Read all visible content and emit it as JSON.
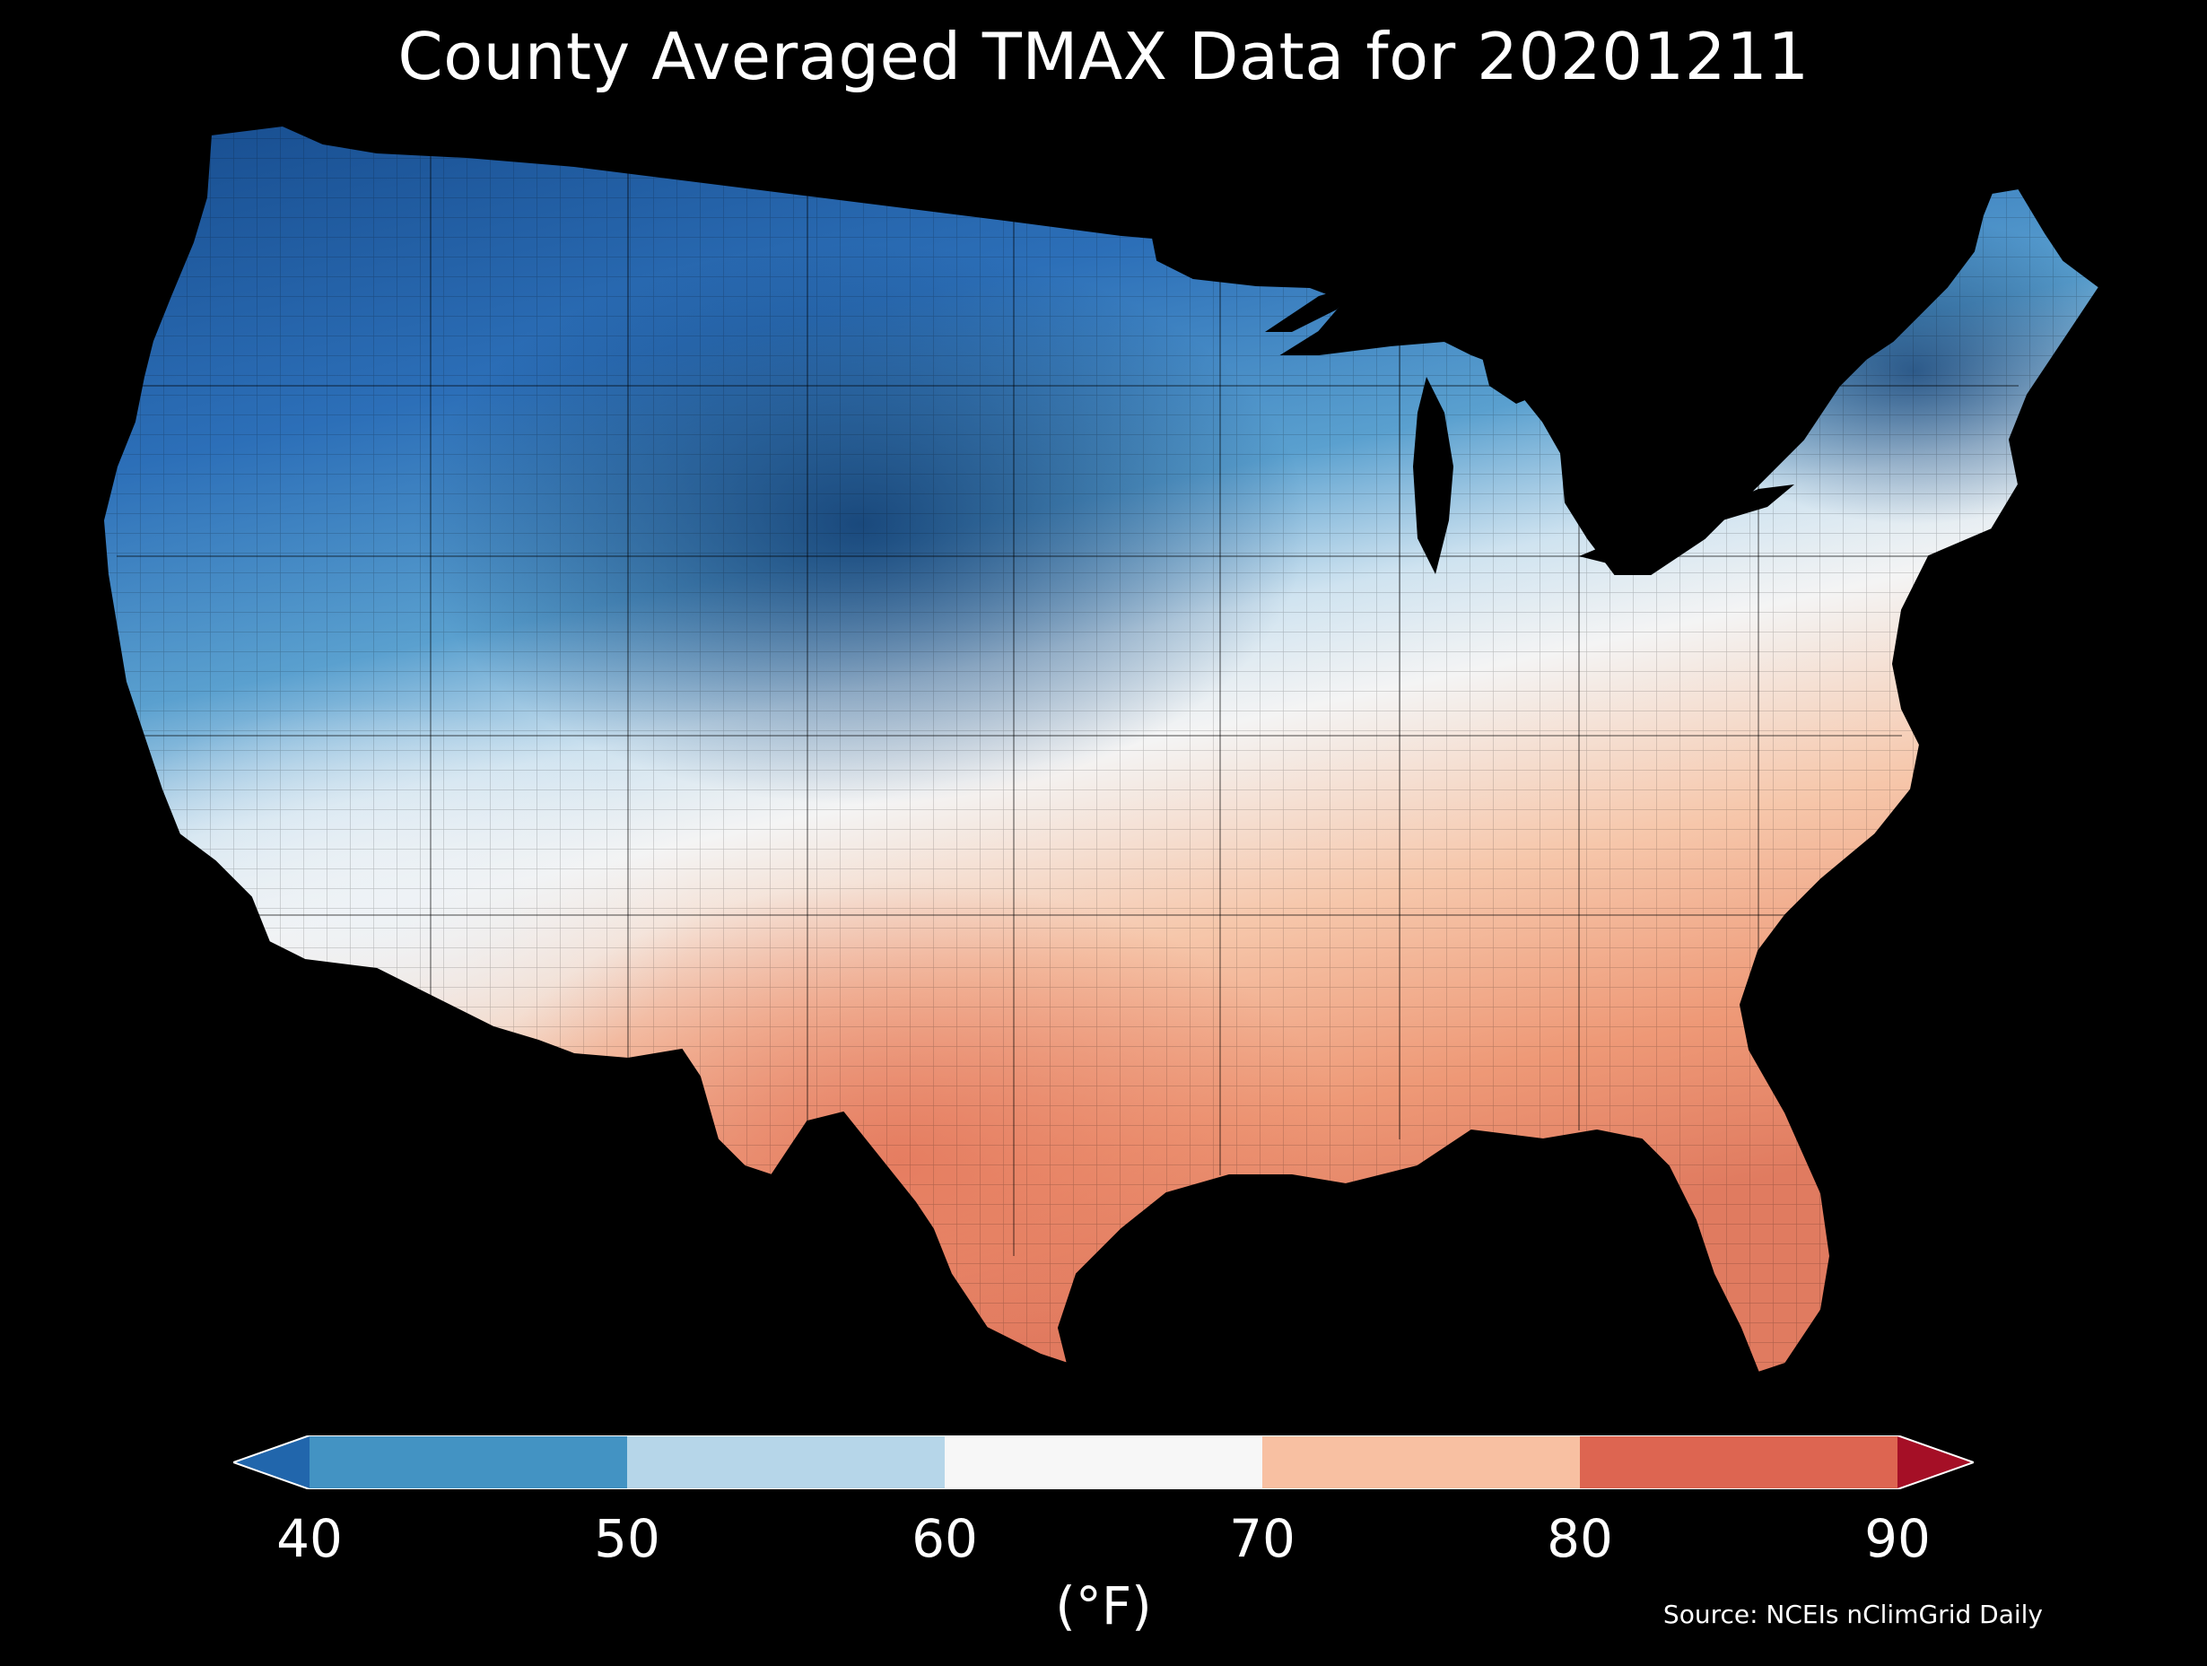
{
  "title": "County Averaged TMAX Data for 20201211",
  "colorbar": {
    "unit_label": "(°F)",
    "ticks": [
      "40",
      "50",
      "60",
      "70",
      "80",
      "90"
    ],
    "bins": [
      {
        "range": "<40",
        "color": "#2166ac"
      },
      {
        "range": "40-50",
        "color": "#4393c3"
      },
      {
        "range": "50-60",
        "color": "#b6d6e9"
      },
      {
        "range": "60-70",
        "color": "#f7f7f7"
      },
      {
        "range": "70-80",
        "color": "#f8c0a2"
      },
      {
        "range": "80-90",
        "color": "#dd6551"
      },
      {
        "range": ">90",
        "color": "#a50f26"
      }
    ],
    "extend": "both"
  },
  "source": "Source: NCEIs nClimGrid Daily",
  "map": {
    "region": "Contiguous United States",
    "variable": "TMAX",
    "units": "°F",
    "date": "20201211",
    "background": "#000000"
  }
}
